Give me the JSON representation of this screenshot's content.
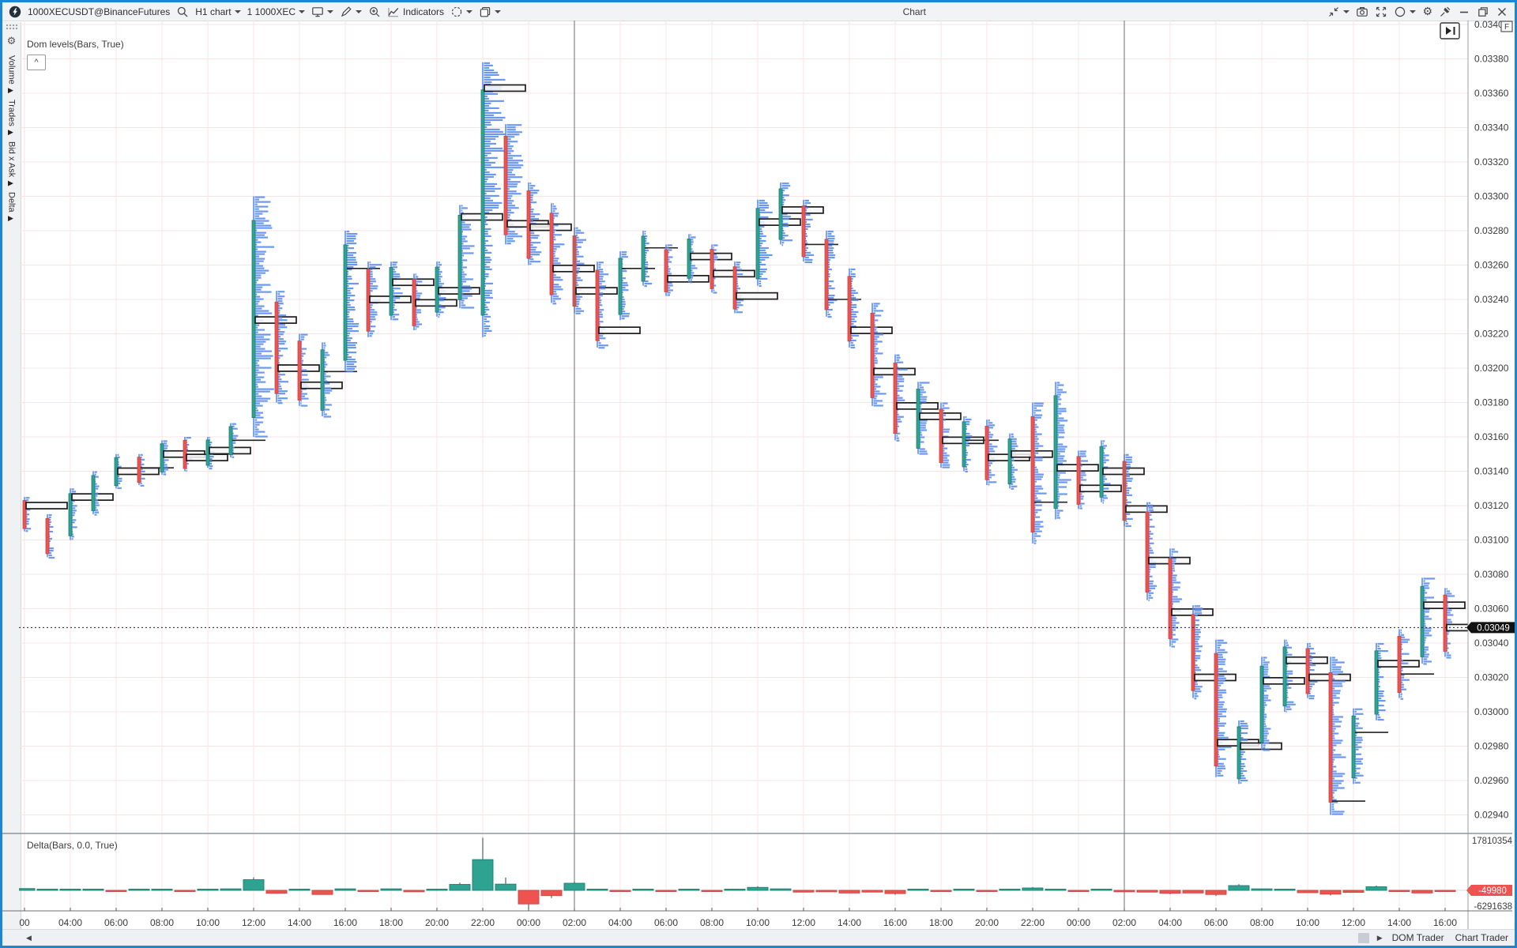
{
  "window": {
    "title": "Chart"
  },
  "toolbar": {
    "symbol": "1000XECUSDT@BinanceFutures",
    "timeframe": "H1 chart",
    "aggregation": "1 1000XEC",
    "indicators_label": "Indicators"
  },
  "sidebar": {
    "items": [
      {
        "label": "Volume"
      },
      {
        "label": "Trades"
      },
      {
        "label": "Bid x Ask"
      },
      {
        "label": "Delta"
      }
    ],
    "arrow_glyph": "▶"
  },
  "panels": {
    "dom_label": "Dom levels(Bars, True)",
    "delta_label": "Delta(Bars, 0.0, True)",
    "collapse_glyph": "^"
  },
  "price_axis": {
    "max": 0.034,
    "min": 0.0294,
    "step": 0.0002,
    "decimals": 5,
    "current_label": "0.03049",
    "flag_label": "F"
  },
  "delta_axis": {
    "max_label": "17810354",
    "min_label": "-6291638",
    "current_label": "-49980"
  },
  "time_axis": {
    "labels": [
      "00",
      "04:00",
      "06:00",
      "08:00",
      "10:00",
      "12:00",
      "14:00",
      "16:00",
      "18:00",
      "20:00",
      "22:00",
      "00:00",
      "02:00",
      "04:00",
      "06:00",
      "08:00",
      "10:00",
      "12:00",
      "14:00",
      "16:00",
      "18:00",
      "20:00",
      "22:00",
      "00:00",
      "02:00",
      "04:00",
      "06:00",
      "08:00",
      "10:00",
      "12:00",
      "14:00",
      "16:00"
    ]
  },
  "status_bar": {
    "left_arrow": "◀",
    "right_arrow": "▶",
    "tabs": [
      "DOM Trader",
      "Chart Trader"
    ]
  },
  "colors": {
    "up": "#2fa391",
    "up_stroke": "#1d7d72",
    "down": "#ef5350",
    "down_stroke": "#c64545",
    "profile": "#5b8def",
    "grid": "#f4e4e4",
    "separator": "#6f6f6f",
    "current_price_bg": "#111111",
    "delta_label_bg": "#ef5350",
    "accent_border": "#1d86d2"
  },
  "chart_data": {
    "type": "candlestick",
    "symbol": "1000XECUSDT@BinanceFutures",
    "interval": "H1",
    "subtitle_indicators": [
      "Dom levels(Bars, True)",
      "Delta(Bars, 0.0, True)"
    ],
    "price_range": [
      0.0294,
      0.034
    ],
    "price_grid_step": 0.0002,
    "current_price": 0.03049,
    "delta_range": [
      -6291638,
      17810354
    ],
    "current_delta": -49980,
    "session_break_label": "02:00",
    "start_time_label": "02:00",
    "bars_note": "each bar: [high, low, up(1)/down(0), close_marker_price_or_null, profile_strength_0to1, delta_millions, delta_wick_millions]",
    "bars": [
      [
        0.03125,
        0.03105,
        0,
        0.0312,
        0.3,
        0.6,
        0
      ],
      [
        0.03115,
        0.0309,
        0,
        null,
        0.25,
        0.3,
        0
      ],
      [
        0.0313,
        0.031,
        1,
        0.03125,
        0.3,
        0.4,
        0
      ],
      [
        0.0314,
        0.03115,
        1,
        null,
        0.25,
        0.3,
        0
      ],
      [
        0.0315,
        0.0313,
        1,
        0.0314,
        0.3,
        -0.3,
        0
      ],
      [
        0.0315,
        0.03132,
        0,
        0.03142,
        0.25,
        0.3,
        0
      ],
      [
        0.03158,
        0.03138,
        1,
        0.0315,
        0.3,
        0.4,
        0
      ],
      [
        0.0316,
        0.0314,
        0,
        0.03148,
        0.25,
        -0.4,
        0
      ],
      [
        0.0316,
        0.03142,
        1,
        0.03152,
        0.28,
        0.3,
        0
      ],
      [
        0.03168,
        0.03148,
        1,
        0.03158,
        0.3,
        0.5,
        0
      ],
      [
        0.033,
        0.0316,
        1,
        0.03228,
        0.85,
        3.6,
        4.4
      ],
      [
        0.03245,
        0.0318,
        0,
        0.032,
        0.5,
        -1.0,
        0
      ],
      [
        0.0322,
        0.03178,
        0,
        0.0319,
        0.4,
        0.4,
        0
      ],
      [
        0.03215,
        0.03172,
        1,
        0.03198,
        0.45,
        -1.4,
        0
      ],
      [
        0.0328,
        0.03198,
        1,
        0.03258,
        0.6,
        0.5,
        0
      ],
      [
        0.03262,
        0.03218,
        0,
        0.0324,
        0.45,
        -0.4,
        0
      ],
      [
        0.03262,
        0.03228,
        1,
        0.0325,
        0.4,
        0.5,
        0
      ],
      [
        0.03255,
        0.03222,
        0,
        0.03238,
        0.35,
        -0.5,
        0
      ],
      [
        0.03262,
        0.0323,
        1,
        0.03245,
        0.4,
        0.4,
        0
      ],
      [
        0.03295,
        0.03235,
        1,
        0.03288,
        0.55,
        2.0,
        2.6
      ],
      [
        0.03378,
        0.03218,
        1,
        0.03363,
        1.0,
        10.4,
        17.81
      ],
      [
        0.03342,
        0.03272,
        0,
        0.03284,
        0.8,
        2.1,
        4.3
      ],
      [
        0.03308,
        0.0326,
        0,
        0.03282,
        0.55,
        -4.6,
        -6.29
      ],
      [
        0.03296,
        0.03238,
        0,
        0.03258,
        0.45,
        -1.8,
        -2.6
      ],
      [
        0.03282,
        0.03232,
        0,
        0.03245,
        0.45,
        2.4,
        3.0
      ],
      [
        0.03262,
        0.03212,
        0,
        0.03222,
        0.4,
        0.3,
        0
      ],
      [
        0.03268,
        0.03228,
        1,
        0.03258,
        0.35,
        -0.3,
        0
      ],
      [
        0.0328,
        0.03248,
        1,
        0.0327,
        0.35,
        0.4,
        0
      ],
      [
        0.03272,
        0.03242,
        0,
        0.03252,
        0.3,
        -0.3,
        0
      ],
      [
        0.03278,
        0.0325,
        1,
        0.03265,
        0.35,
        0.3,
        0
      ],
      [
        0.03272,
        0.03244,
        0,
        0.03255,
        0.3,
        -0.4,
        0
      ],
      [
        0.03262,
        0.03232,
        0,
        0.03242,
        0.35,
        0.3,
        0
      ],
      [
        0.03298,
        0.03248,
        1,
        0.03285,
        0.5,
        1.0,
        1.4
      ],
      [
        0.03308,
        0.03272,
        1,
        0.03292,
        0.45,
        0.5,
        0
      ],
      [
        0.03298,
        0.03262,
        0,
        0.03272,
        0.4,
        -0.6,
        0
      ],
      [
        0.0328,
        0.0323,
        0,
        0.0324,
        0.4,
        -0.5,
        0
      ],
      [
        0.03258,
        0.03212,
        0,
        0.03222,
        0.4,
        -0.9,
        0
      ],
      [
        0.03238,
        0.03178,
        0,
        0.03198,
        0.5,
        -0.6,
        0
      ],
      [
        0.03208,
        0.03158,
        0,
        0.03178,
        0.45,
        -1.1,
        -1.5
      ],
      [
        0.03192,
        0.0315,
        1,
        0.03172,
        0.4,
        0.4,
        0
      ],
      [
        0.0318,
        0.03142,
        0,
        0.03158,
        0.38,
        -0.4,
        0
      ],
      [
        0.03172,
        0.0314,
        1,
        0.03158,
        0.35,
        0.4,
        0
      ],
      [
        0.0317,
        0.03132,
        0,
        0.03148,
        0.35,
        -0.3,
        0
      ],
      [
        0.03162,
        0.0313,
        1,
        0.0315,
        0.35,
        0.4,
        0
      ],
      [
        0.0318,
        0.03098,
        0,
        0.03122,
        0.5,
        0.8,
        1.1
      ],
      [
        0.03192,
        0.03112,
        1,
        0.03142,
        0.55,
        0.4,
        0
      ],
      [
        0.03152,
        0.03118,
        0,
        0.0313,
        0.35,
        -0.3,
        0
      ],
      [
        0.03158,
        0.03122,
        1,
        0.0314,
        0.35,
        0.3,
        0
      ],
      [
        0.0315,
        0.03108,
        0,
        0.03118,
        0.38,
        -0.5,
        0
      ],
      [
        0.03122,
        0.03065,
        0,
        0.03088,
        0.42,
        -0.6,
        0
      ],
      [
        0.03095,
        0.03038,
        0,
        0.03058,
        0.45,
        -1.0,
        -1.3
      ],
      [
        0.03062,
        0.03008,
        0,
        0.0302,
        0.42,
        -0.9,
        0
      ],
      [
        0.03042,
        0.02962,
        0,
        0.02982,
        0.55,
        -1.4,
        -1.9
      ],
      [
        0.02995,
        0.02958,
        1,
        0.0298,
        0.45,
        1.6,
        2.1
      ],
      [
        0.03032,
        0.02978,
        1,
        0.03018,
        0.4,
        0.5,
        0
      ],
      [
        0.03042,
        0.03,
        1,
        0.0303,
        0.38,
        0.4,
        0
      ],
      [
        0.0304,
        0.03008,
        0,
        0.0302,
        0.35,
        -0.8,
        0
      ],
      [
        0.03032,
        0.0294,
        0,
        0.02948,
        0.6,
        -1.3,
        -1.7
      ],
      [
        0.03002,
        0.02958,
        1,
        0.02988,
        0.45,
        -0.7,
        0
      ],
      [
        0.0304,
        0.02995,
        1,
        0.03028,
        0.4,
        1.2,
        1.6
      ],
      [
        0.03048,
        0.03008,
        0,
        0.03022,
        0.38,
        -0.4,
        0
      ],
      [
        0.03078,
        0.03028,
        1,
        0.03062,
        0.42,
        -0.9,
        0
      ],
      [
        0.03072,
        0.03032,
        0,
        0.03049,
        0.35,
        -0.05,
        0
      ]
    ]
  }
}
